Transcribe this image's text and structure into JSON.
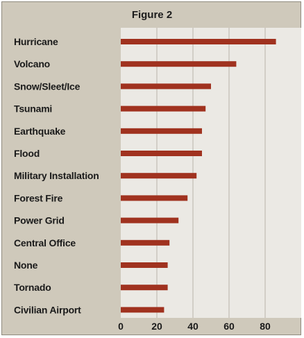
{
  "figure_label": "Figure 2",
  "colors": {
    "background": "#cfc9bb",
    "plot_area": "#ebe9e4",
    "bar": "#a0321f",
    "grid": "#b9b4aa"
  },
  "chart_data": {
    "type": "bar",
    "orientation": "horizontal",
    "title": "Figure 2",
    "xlabel": "",
    "ylabel": "",
    "categories": [
      "Hurricane",
      "Volcano",
      "Snow/Sleet/Ice",
      "Tsunami",
      "Earthquake",
      "Flood",
      "Military Installation",
      "Forest Fire",
      "Power Grid",
      "Central Office",
      "None",
      "Tornado",
      "Civilian Airport"
    ],
    "values": [
      86,
      64,
      50,
      47,
      45,
      45,
      42,
      37,
      32,
      27,
      26,
      26,
      24
    ],
    "xlim": [
      0,
      100
    ],
    "xticks": [
      0,
      20,
      40,
      60,
      80
    ],
    "grid": true,
    "legend": "none"
  }
}
